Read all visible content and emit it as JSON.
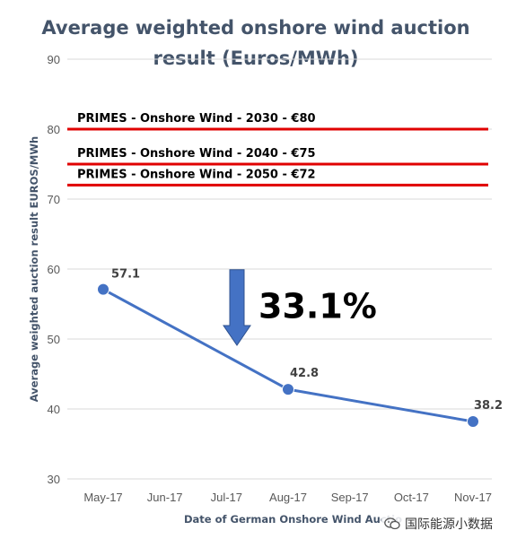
{
  "chart_data": {
    "type": "line",
    "title_lines": [
      "Average weighted onshore wind auction",
      "result (Euros/MWh)"
    ],
    "xlabel": "Date of German Onshore Wind Auctio",
    "ylabel": "Average weighted auction result EUROS/MWh",
    "categories": [
      "May-17",
      "Jun-17",
      "Jul-17",
      "Aug-17",
      "Sep-17",
      "Oct-17",
      "Nov-17"
    ],
    "series": [
      {
        "points": [
          {
            "x": "May-17",
            "y": 57.1,
            "label": "57.1"
          },
          {
            "x": "Aug-17",
            "y": 42.8,
            "label": "42.8"
          },
          {
            "x": "Nov-17",
            "y": 38.2,
            "label": "38.2"
          }
        ],
        "color": "#4472c4"
      }
    ],
    "ylim": [
      30,
      90
    ],
    "yticks": [
      30,
      40,
      50,
      60,
      70,
      80,
      90
    ],
    "grid": true,
    "reference_lines": [
      {
        "y": 80,
        "label": "PRIMES - Onshore Wind - 2030 - €80",
        "color": "#e00000"
      },
      {
        "y": 75,
        "label": "PRIMES - Onshore Wind - 2040 - €75",
        "color": "#e00000"
      },
      {
        "y": 72,
        "label": "PRIMES - Onshore Wind - 2050 - €72",
        "color": "#e00000"
      }
    ],
    "annotation": {
      "text": "33.1%",
      "arrow": "down",
      "color": "#4472c4"
    }
  },
  "watermark": {
    "text": "国际能源小数据",
    "icon": "wechat-icon"
  }
}
